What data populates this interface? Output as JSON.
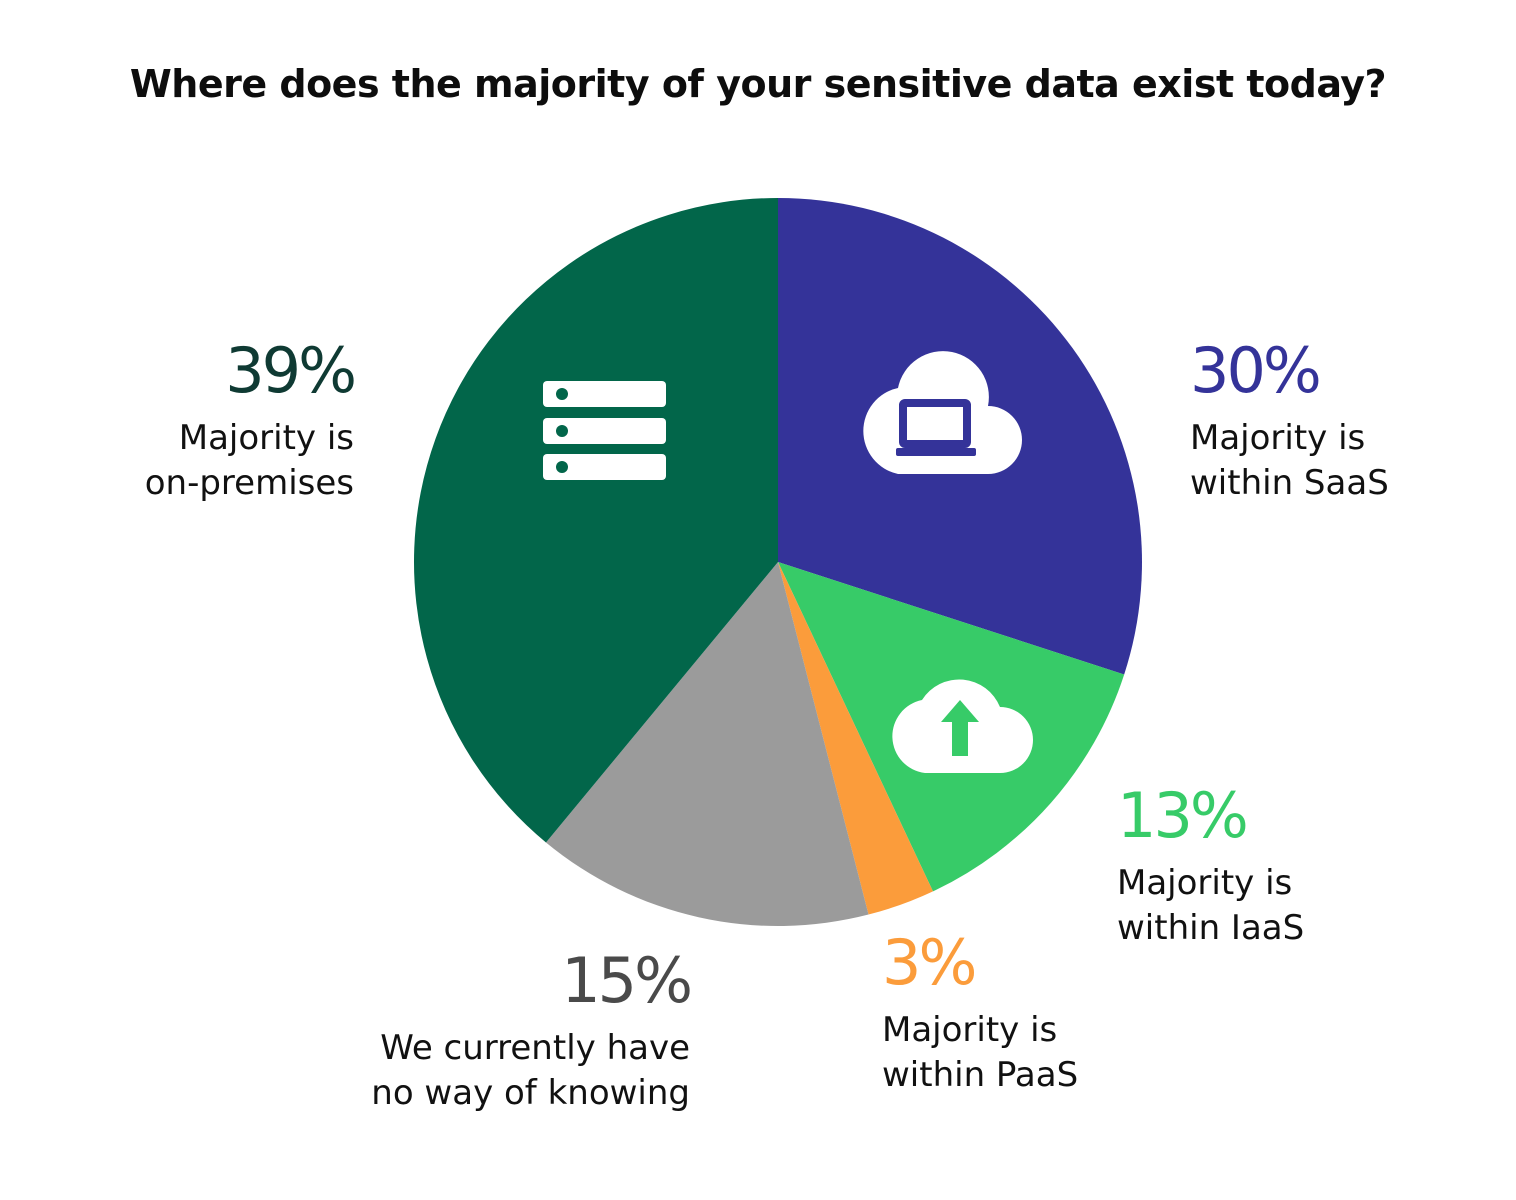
{
  "title": "Where does the majority of your sensitive data exist today?",
  "colors": {
    "on_premises": "#02664A",
    "saas": "#343399",
    "iaas": "#37CB68",
    "paas": "#FB9C3B",
    "unknown": "#9B9B9B",
    "onprem_label": "#0F3A33",
    "unknown_label": "#4A4A4A"
  },
  "icons": {
    "on_premises": "server-stack-icon",
    "saas": "cloud-laptop-icon",
    "iaas": "cloud-upload-icon"
  },
  "chart_data": {
    "type": "pie",
    "title": "Where does the majority of your sensitive data exist today?",
    "start": "12 o'clock",
    "direction": "clockwise",
    "slices": [
      {
        "key": "saas",
        "value": 30,
        "pct_label": "30%",
        "label": "Majority is\nwithin SaaS",
        "color": "#343399"
      },
      {
        "key": "iaas",
        "value": 13,
        "pct_label": "13%",
        "label": "Majority is\nwithin IaaS",
        "color": "#37CB68"
      },
      {
        "key": "paas",
        "value": 3,
        "pct_label": "3%",
        "label": "Majority is\nwithin PaaS",
        "color": "#FB9C3B"
      },
      {
        "key": "unknown",
        "value": 15,
        "pct_label": "15%",
        "label": "We currently have\nno way of knowing",
        "color": "#9B9B9B"
      },
      {
        "key": "on_premises",
        "value": 39,
        "pct_label": "39%",
        "label": "Majority is\non-premises",
        "color": "#02664A"
      }
    ]
  }
}
